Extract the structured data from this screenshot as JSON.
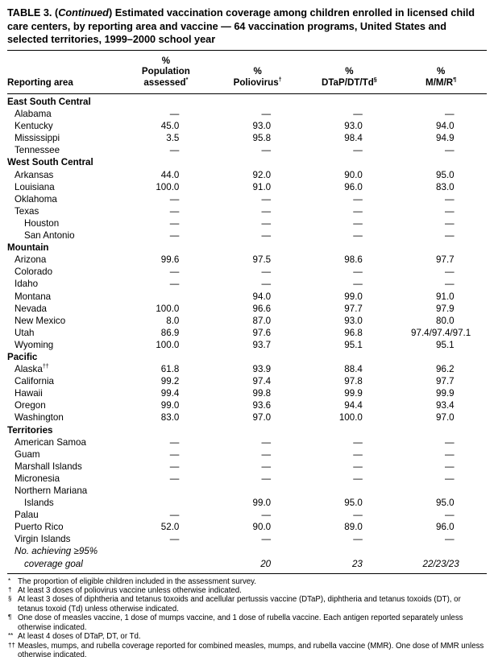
{
  "title": {
    "prefix": "TABLE 3. (",
    "continued": "Continued",
    "suffix": ") Estimated vaccination coverage among children enrolled in licensed child care centers, by reporting area and vaccine — 64 vaccination programs, United States and selected territories, 1999–2000 school year"
  },
  "table": {
    "columns": [
      {
        "lines": [
          "Reporting area"
        ]
      },
      {
        "lines": [
          "%",
          "Population",
          "assessed"
        ],
        "sup": "*"
      },
      {
        "lines": [
          "%",
          "Poliovirus"
        ],
        "sup": "†"
      },
      {
        "lines": [
          "%",
          "DTaP/DT/Td"
        ],
        "sup": "§"
      },
      {
        "lines": [
          "%",
          "M/M/R"
        ],
        "sup": "¶"
      }
    ],
    "rows": [
      {
        "t": "section",
        "label": "East South Central"
      },
      {
        "t": "row",
        "i": 1,
        "label": "Alabama",
        "v": [
          "—",
          "—",
          "—",
          "—"
        ]
      },
      {
        "t": "row",
        "i": 1,
        "label": "Kentucky",
        "v": [
          "45.0",
          "93.0",
          "93.0",
          "94.0"
        ]
      },
      {
        "t": "row",
        "i": 1,
        "label": "Mississippi",
        "v": [
          "3.5",
          "95.8",
          "98.4",
          "94.9"
        ]
      },
      {
        "t": "row",
        "i": 1,
        "label": "Tennessee",
        "v": [
          "—",
          "—",
          "—",
          "—"
        ]
      },
      {
        "t": "section",
        "label": "West South Central"
      },
      {
        "t": "row",
        "i": 1,
        "label": "Arkansas",
        "v": [
          "44.0",
          "92.0",
          "90.0",
          "95.0"
        ]
      },
      {
        "t": "row",
        "i": 1,
        "label": "Louisiana",
        "v": [
          "100.0",
          "91.0",
          "96.0",
          "83.0"
        ]
      },
      {
        "t": "row",
        "i": 1,
        "label": "Oklahoma",
        "v": [
          "—",
          "—",
          "—",
          "—"
        ]
      },
      {
        "t": "row",
        "i": 1,
        "label": "Texas",
        "v": [
          "—",
          "—",
          "—",
          "—"
        ]
      },
      {
        "t": "row",
        "i": 2,
        "label": "Houston",
        "v": [
          "—",
          "—",
          "—",
          "—"
        ]
      },
      {
        "t": "row",
        "i": 2,
        "label": "San Antonio",
        "v": [
          "—",
          "—",
          "—",
          "—"
        ]
      },
      {
        "t": "section",
        "label": "Mountain"
      },
      {
        "t": "row",
        "i": 1,
        "label": "Arizona",
        "v": [
          "99.6",
          "97.5",
          "98.6",
          "97.7"
        ]
      },
      {
        "t": "row",
        "i": 1,
        "label": "Colorado",
        "v": [
          "—",
          "—",
          "—",
          "—"
        ]
      },
      {
        "t": "row",
        "i": 1,
        "label": "Idaho",
        "v": [
          "—",
          "—",
          "—",
          "—"
        ]
      },
      {
        "t": "row",
        "i": 1,
        "label": "Montana",
        "v": [
          "",
          "94.0",
          "99.0",
          "91.0"
        ]
      },
      {
        "t": "row",
        "i": 1,
        "label": "Nevada",
        "v": [
          "100.0",
          "96.6",
          "97.7",
          "97.9"
        ]
      },
      {
        "t": "row",
        "i": 1,
        "label": "New Mexico",
        "v": [
          "8.0",
          "87.0",
          "93.0",
          "80.0"
        ]
      },
      {
        "t": "row",
        "i": 1,
        "label": "Utah",
        "v": [
          "86.9",
          "97.6",
          "96.8",
          "97.4/97.4/97.1"
        ]
      },
      {
        "t": "row",
        "i": 1,
        "label": "Wyoming",
        "v": [
          "100.0",
          "93.7",
          "95.1",
          "95.1"
        ]
      },
      {
        "t": "section",
        "label": "Pacific"
      },
      {
        "t": "row",
        "i": 1,
        "label": "Alaska",
        "sup": "††",
        "v": [
          "61.8",
          "93.9",
          "88.4",
          "96.2"
        ]
      },
      {
        "t": "row",
        "i": 1,
        "label": "California",
        "v": [
          "99.2",
          "97.4",
          "97.8",
          "97.7"
        ]
      },
      {
        "t": "row",
        "i": 1,
        "label": "Hawaii",
        "v": [
          "99.4",
          "99.8",
          "99.9",
          "99.9"
        ]
      },
      {
        "t": "row",
        "i": 1,
        "label": "Oregon",
        "v": [
          "99.0",
          "93.6",
          "94.4",
          "93.4"
        ]
      },
      {
        "t": "row",
        "i": 1,
        "label": "Washington",
        "v": [
          "83.0",
          "97.0",
          "100.0",
          "97.0"
        ]
      },
      {
        "t": "section",
        "label": "Territories"
      },
      {
        "t": "row",
        "i": 1,
        "label": "American Samoa",
        "v": [
          "—",
          "—",
          "—",
          "—"
        ]
      },
      {
        "t": "row",
        "i": 1,
        "label": "Guam",
        "v": [
          "—",
          "—",
          "—",
          "—"
        ]
      },
      {
        "t": "row",
        "i": 1,
        "label": "Marshall Islands",
        "v": [
          "—",
          "—",
          "—",
          "—"
        ]
      },
      {
        "t": "row",
        "i": 1,
        "label": "Micronesia",
        "v": [
          "—",
          "—",
          "—",
          "—"
        ]
      },
      {
        "t": "row",
        "i": 1,
        "label": "Northern Mariana",
        "v": [
          "",
          "",
          "",
          ""
        ]
      },
      {
        "t": "row",
        "i": 2,
        "label": "Islands",
        "v": [
          "",
          "99.0",
          "95.0",
          "95.0"
        ]
      },
      {
        "t": "row",
        "i": 1,
        "label": "Palau",
        "v": [
          "—",
          "—",
          "—",
          "—"
        ]
      },
      {
        "t": "row",
        "i": 1,
        "label": "Puerto Rico",
        "v": [
          "52.0",
          "90.0",
          "89.0",
          "96.0"
        ]
      },
      {
        "t": "row",
        "i": 1,
        "label": "Virgin Islands",
        "v": [
          "—",
          "—",
          "—",
          "—"
        ]
      },
      {
        "t": "row",
        "i": 1,
        "label": "No. achieving ≥95%",
        "italic": true,
        "v": [
          "",
          "",
          "",
          ""
        ]
      },
      {
        "t": "row",
        "i": 2,
        "label": "coverage goal",
        "italic": true,
        "v": [
          "",
          "20",
          "23",
          "22/23/23"
        ]
      }
    ]
  },
  "footnotes": [
    {
      "marker": "*",
      "text": "The proportion of eligible children included in the assessment survey."
    },
    {
      "marker": "†",
      "text": "At least 3 doses of poliovirus vaccine unless otherwise indicated."
    },
    {
      "marker": "§",
      "text": "At least 3 doses of diphtheria and tetanus toxoids and acellular pertussis vaccine (DTaP), diphtheria and tetanus toxoids (DT), or tetanus toxoid (Td) unless otherwise indicated."
    },
    {
      "marker": "¶",
      "text": "One dose of measles vaccine, 1 dose of mumps vaccine, and 1 dose of rubella vaccine. Each antigen reported separately unless otherwise indicated."
    },
    {
      "marker": "**",
      "text": "At least 4 doses of DTaP, DT, or Td."
    },
    {
      "marker": "††",
      "text": "Measles, mumps, and rubella coverage reported for combined measles, mumps, and rubella vaccine (MMR). One dose of MMR unless otherwise indicated."
    }
  ]
}
